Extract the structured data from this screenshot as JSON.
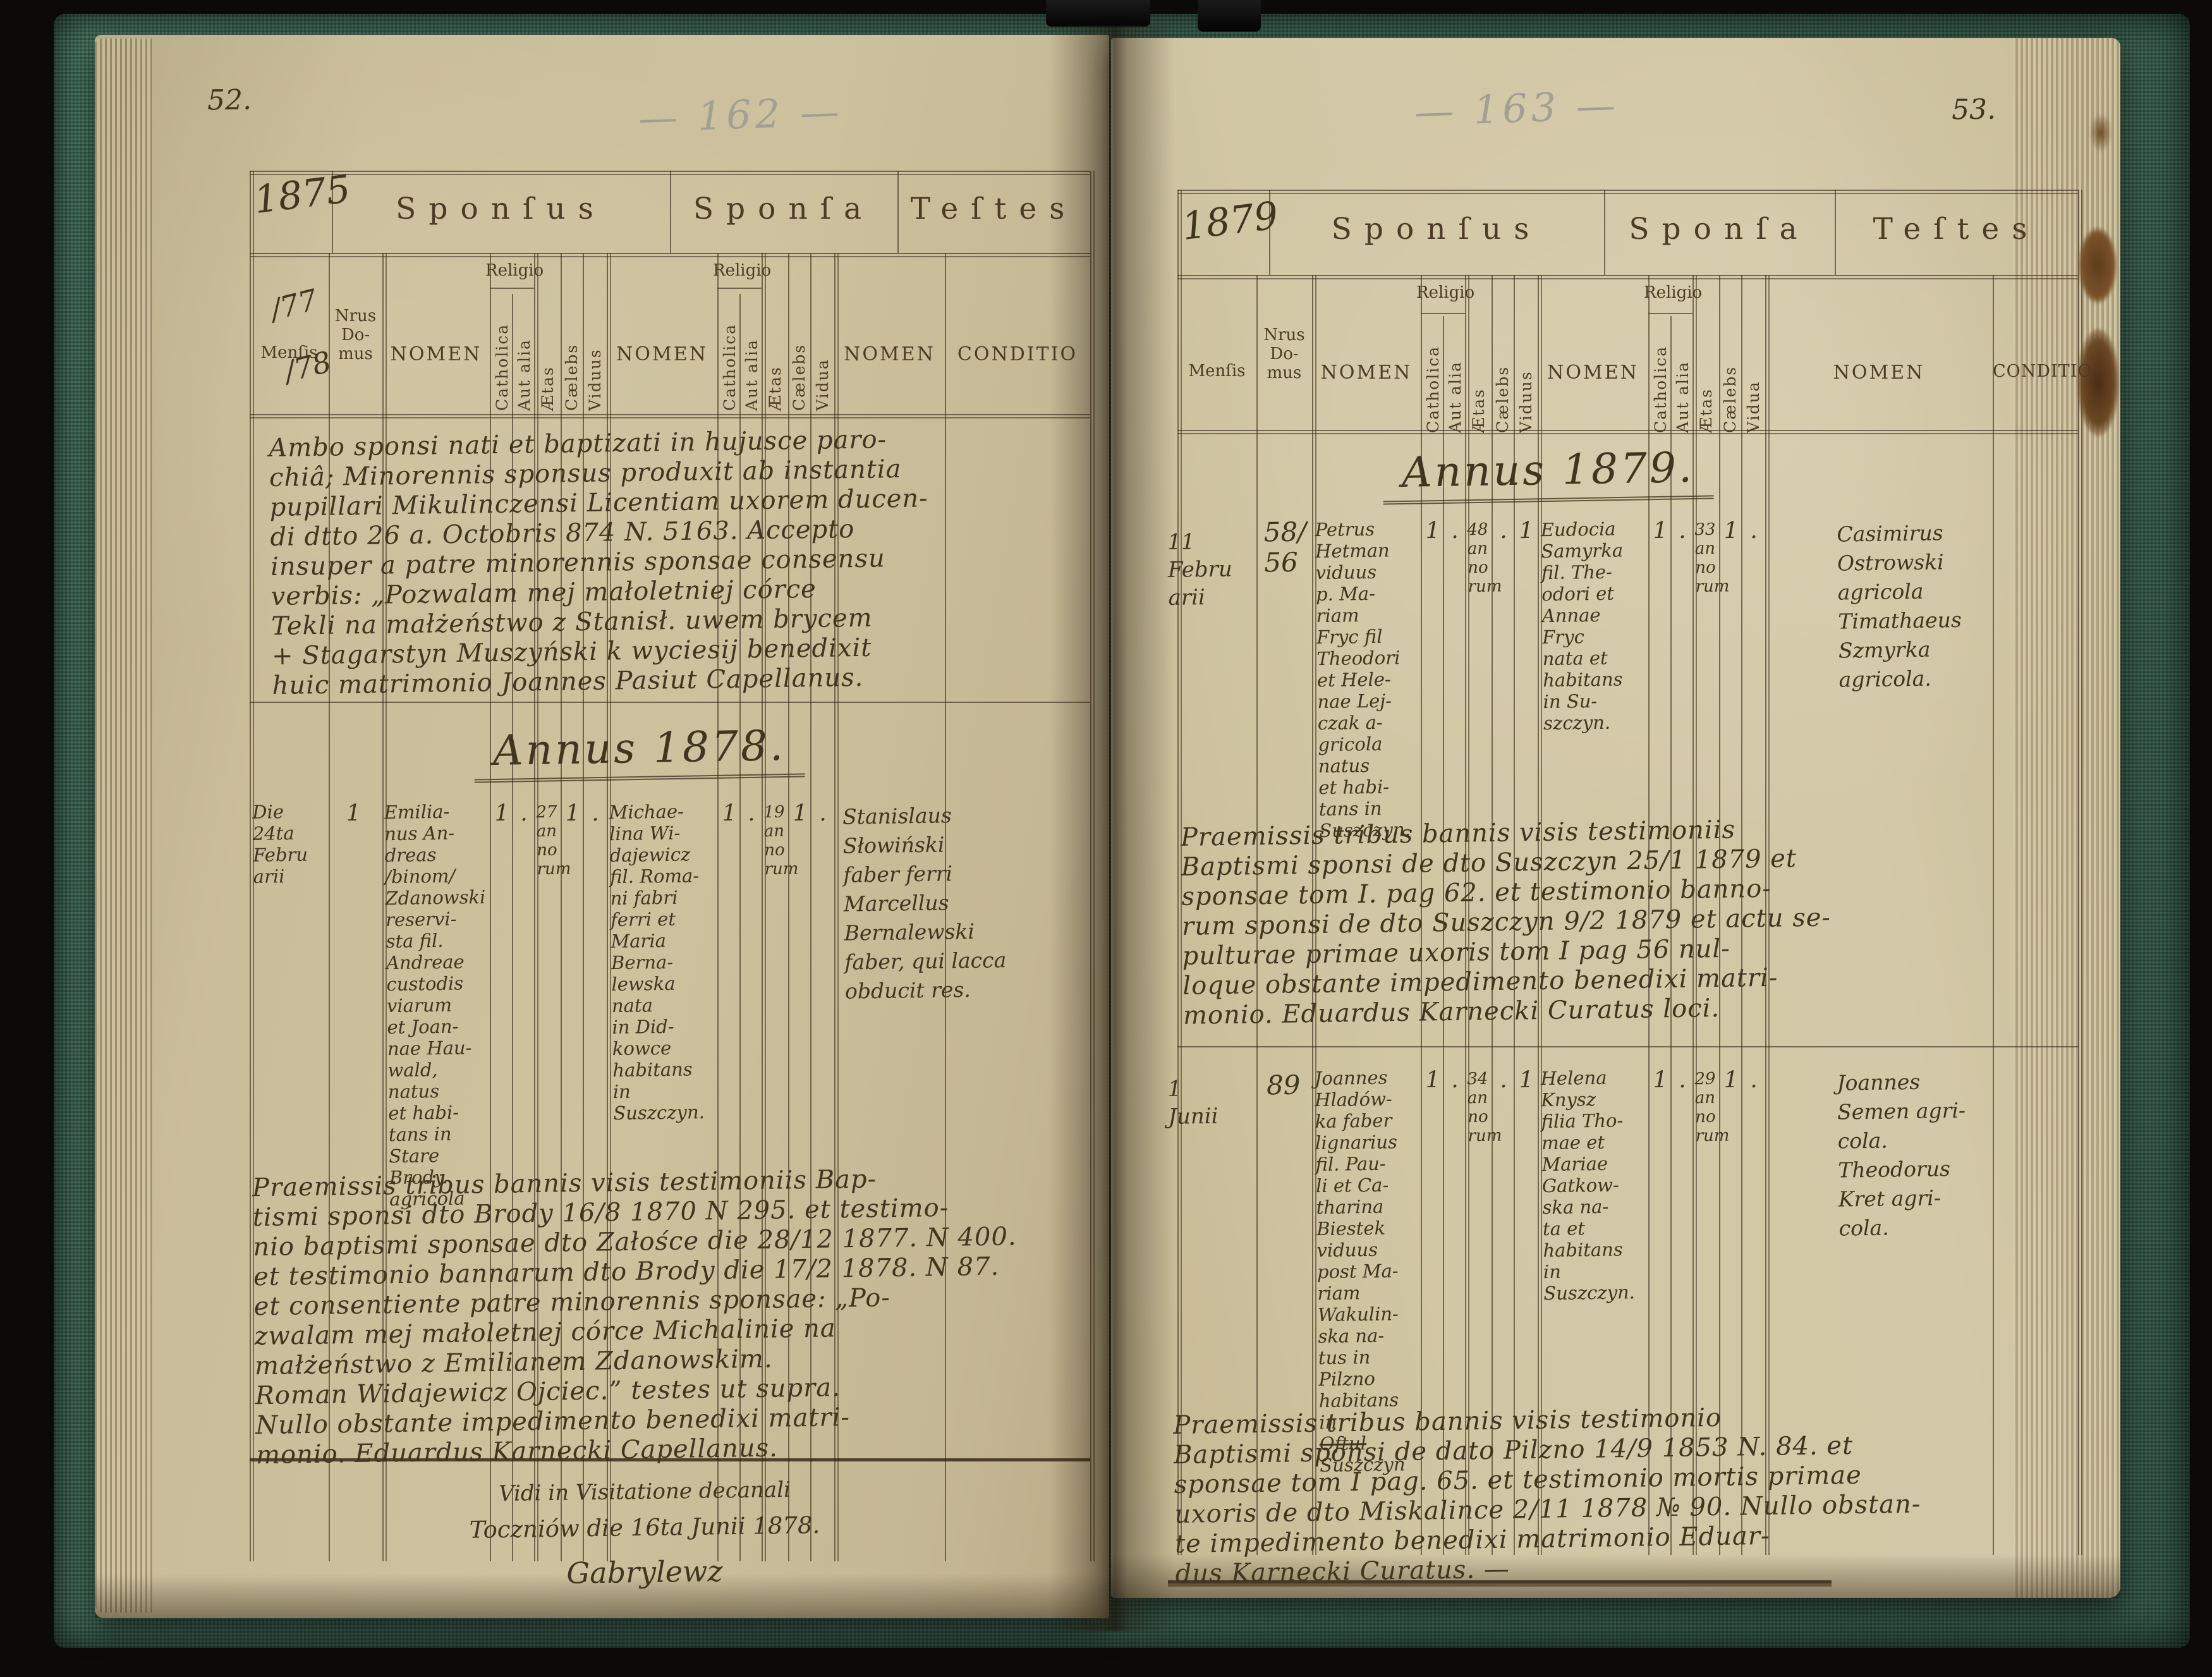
{
  "print": {
    "sponsus": "Sponſus",
    "sponsa": "Sponſa",
    "testes": "Teſtes",
    "mensis": "Menſis",
    "nrus": "Nrus\nDo-\nmus",
    "nomen": "NOMEN",
    "religio": "Religio",
    "catholica": "Catholica",
    "aut_alia": "Aut alia",
    "aetas": "Ætas",
    "caelebs": "Cælebs",
    "viduus": "Viduus",
    "vidua": "Vidua",
    "conditio": "CONDITIO"
  },
  "left": {
    "page_number": "52.",
    "pencil_number": "— 162 —",
    "year": "1875",
    "mark1": "/77",
    "mark2": "/78",
    "intro": "Ambo sponsi nati et baptizati in hujusce paro-\nchiâ; Minorennis sponsus produxit ab instantia\npupillari Mikulinczensi Licentiam uxorem ducen-\ndi dtto 26 a. Octobris 874 N. 5163. Accepto\ninsuper a patre minorennis sponsae consensu\nverbis: „Pozwalam mej małoletniej córce\nTekli na małżeństwo z Stanisł. uwem brycem\n+ Stagarstyn Muszyński k wyciesij benedixit\nhuic matrimonio Joannes Pasiut Capellanus.",
    "annus": "Annus 1878.",
    "entry": {
      "mensis": "Die\n24ta\nFebru\narii",
      "domus": "1",
      "sponsus": "Emilia-\nnus An-\ndreas\n/binom/\nZdanowski\nreservi-\nsta fil.\nAndreae\ncustodis\nviarum\net Joan-\nnae Hau-\nwald,\nnatus\net habi-\ntans in\nStare\nBrody.\nagricola",
      "s_cath": "1",
      "s_aut": ".",
      "s_aetas": "27\nan\nno\nrum",
      "s_caelebs": "1",
      "s_viduus": ".",
      "sponsa": "Michae-\nlina Wi-\ndajewicz\nfil. Roma-\nni fabri\nferri et\nMaria\nBerna-\nlewska\nnata\nin Did-\nkowce\nhabitans\nin Suszczyn.",
      "b_cath": "1",
      "b_aut": ".",
      "b_aetas": "19\nan\nno\nrum",
      "b_caelebs": "1",
      "b_vidua": ".",
      "testes": "Stanislaus\nSłowiński\nfaber ferri\nMarcellus\nBernalewski\nfaber, qui lacca\nobducit res."
    },
    "banns": "Praemissis tribus bannis visis testimoniis Bap-\ntismi sponsi dto Brody 16/8 1870 N 295. et testimo-\nnio baptismi sponsae dto Załośce die 28/12 1877. N 400.\net testimonio bannarum dto Brody die 17/2 1878. N 87.\net consentiente patre minorennis sponsae: „Po-\nzwalam mej małoletnej córce Michalinie na\nmałżeństwo z Emilianem Zdanowskim.\nRoman Widajewicz Ojciec.” testes ut supra.\nNullo obstante impedimento benedixi matri-\nmonio. Eduardus Karnecki Capellanus.",
    "vidi_line1": "Vidi in Visitatione decanali",
    "vidi_line2": "Toczniów die 16ta Junii 1878.",
    "vidi_signature": "Gabrylewz"
  },
  "right": {
    "page_number": "53.",
    "pencil_number": "— 163 —",
    "year": "1879",
    "annus": "Annus 1879.",
    "entry1": {
      "mensis": "11\nFebru\narii",
      "domus": "58/\n56",
      "sponsus": "Petrus\nHetman\nviduus\np. Ma-\nriam\nFryc fil\nTheodori\net Hele-\nnae Lej-\nczak a-\ngricola\nnatus\net habi-\ntans in\nSuszczyn.",
      "s_cath": "1",
      "s_aut": ".",
      "s_aetas": "48\nan\nno\nrum",
      "s_caelebs": ".",
      "s_viduus": "1",
      "sponsa": "Eudocia\nSamyrka\nfil. The-\nodori et\nAnnae\nFryc\nnata et\nhabitans\nin Su-\nszczyn.",
      "b_cath": "1",
      "b_aut": ".",
      "b_aetas": "33\nan\nno\nrum",
      "b_caelebs": "1",
      "b_vidua": ".",
      "testes": "Casimirus\nOstrowski\nagricola\nTimathaeus\nSzmyrka\nagricola."
    },
    "banns1": "Praemissis tribus bannis visis testimoniis\nBaptismi sponsi de dto Suszczyn 25/1 1879 et\nsponsae tom I. pag 62. et testimonio banno-\nrum sponsi de dto Suszczyn 9/2 1879 et actu se-\npulturae primae uxoris tom I pag 56 nul-\nloque obstante impedimento benedixi matri-\nmonio. Eduardus Karnecki Curatus loci.",
    "entry2": {
      "mensis": "1\nJunii",
      "domus": "89",
      "sponsus": "Joannes\nHladów-\nka faber\nlignarius\nfil. Pau-\nli et Ca-\ntharina\nBiestek\nviduus\npost Ma-\nriam\nWakulin-\nska na-\ntus in\nPilzno\nhabitans\nin",
      "sponsus_struck": "Oftul",
      "sponsus_end": "Suszczyn",
      "s_cath": "1",
      "s_aut": ".",
      "s_aetas": "34\nan\nno\nrum",
      "s_caelebs": ".",
      "s_viduus": "1",
      "sponsa": "Helena\nKnysz\nfilia Tho-\nmae et\nMariae\nGatkow-\nska na-\nta et\nhabitans\nin Suszczyn.",
      "b_cath": "1",
      "b_aut": ".",
      "b_aetas": "29\nan\nno\nrum",
      "b_caelebs": "1",
      "b_vidua": ".",
      "testes": "Joannes\nSemen agri-\ncola.\nTheodorus\nKret agri-\ncola."
    },
    "banns2": "Praemissis tribus bannis visis testimonio\nBaptismi sponsi de dato Pilzno 14/9 1853 N. 84. et\nsponsae tom I pag. 65. et testimonio mortis primae\nuxoris de dto Miskalince 2/11 1878 № 90. Nullo obstan-\nte impedimento benedixi matrimonio Eduar-\ndus Karnecki Curatus. —"
  },
  "colors": {
    "ink": "#40351f",
    "print_ink": "#4c3b25",
    "pencil": "#a39f93",
    "paper_left": "#cabd9a",
    "paper_right": "#d2c7a5",
    "cover_green": "#3c6553"
  }
}
